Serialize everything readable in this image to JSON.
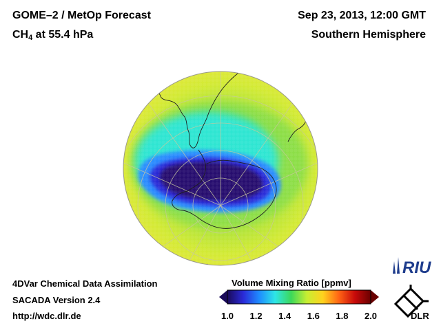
{
  "header": {
    "title": "GOME–2 / MetOp Forecast",
    "species": "CH",
    "species_sub": "4",
    "level": " at 55.4 hPa",
    "datetime": "Sep 23, 2013, 12:00 GMT",
    "region": "Southern Hemisphere"
  },
  "footer": {
    "line1": "4DVar Chemical Data Assimilation",
    "line2": "SACADA Version 2.4",
    "line3": "http://wdc.dlr.de"
  },
  "colorbar": {
    "title": "Volume Mixing Ratio [ppmv]",
    "ticks": [
      "1.0",
      "1.2",
      "1.4",
      "1.6",
      "1.8",
      "2.0"
    ],
    "min": 1.0,
    "max": 2.0,
    "colors": [
      "#1a0a5a",
      "#2a2ad8",
      "#1e8cff",
      "#2ee6e6",
      "#3cd85a",
      "#c8ee32",
      "#ffd21e",
      "#ff6414",
      "#c80a0a",
      "#6a0000"
    ]
  },
  "logos": {
    "riu": "RIU",
    "dlr": "DLR"
  },
  "map": {
    "projection": "orthographic south-polar",
    "colors": {
      "background": "#f0e640",
      "ring_green": "#8cde46",
      "ring_cyan": "#2ee6d2",
      "vortex_blue": "#2a6aff",
      "vortex_dark": "#28106e",
      "grid": "#c8c8a0",
      "coast": "#1e1e1e"
    }
  }
}
